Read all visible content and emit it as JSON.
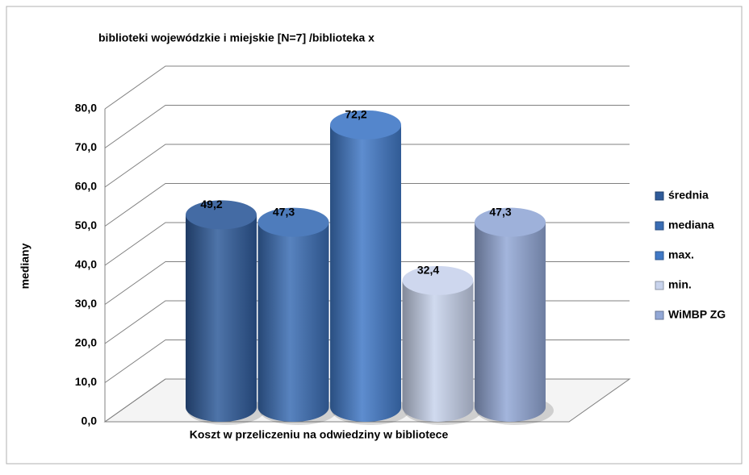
{
  "chart_data": {
    "type": "bar3d",
    "title": "biblioteki wojewódzkie i miejskie  [N=7] /biblioteka x",
    "y_label": "mediany",
    "categories": [
      "Koszt w przeliczeniu na odwiedziny w bibliotece"
    ],
    "series": [
      {
        "name": "średnia",
        "color": "#2f5b9a",
        "values": [
          49.2
        ],
        "value_labels": [
          "49,2"
        ]
      },
      {
        "name": "mediana",
        "color": "#3a6db4",
        "values": [
          47.3
        ],
        "value_labels": [
          "47,3"
        ]
      },
      {
        "name": "max.",
        "color": "#4179c6",
        "values": [
          72.2
        ],
        "value_labels": [
          "72,2"
        ]
      },
      {
        "name": "min.",
        "color": "#c8d3ec",
        "values": [
          32.4
        ],
        "value_labels": [
          "32,4"
        ]
      },
      {
        "name": "WiMBP ZG",
        "color": "#93a8d6",
        "values": [
          47.3
        ],
        "value_labels": [
          "47,3"
        ]
      }
    ],
    "ylim": [
      0,
      80
    ],
    "yticks": [
      {
        "value": 0,
        "label": "0,0"
      },
      {
        "value": 10,
        "label": "10,0"
      },
      {
        "value": 20,
        "label": "20,0"
      },
      {
        "value": 30,
        "label": "30,0"
      },
      {
        "value": 40,
        "label": "40,0"
      },
      {
        "value": 50,
        "label": "50,0"
      },
      {
        "value": 60,
        "label": "60,0"
      },
      {
        "value": 70,
        "label": "70,0"
      },
      {
        "value": 80,
        "label": "80,0"
      }
    ],
    "grid": true,
    "legend": "right"
  }
}
